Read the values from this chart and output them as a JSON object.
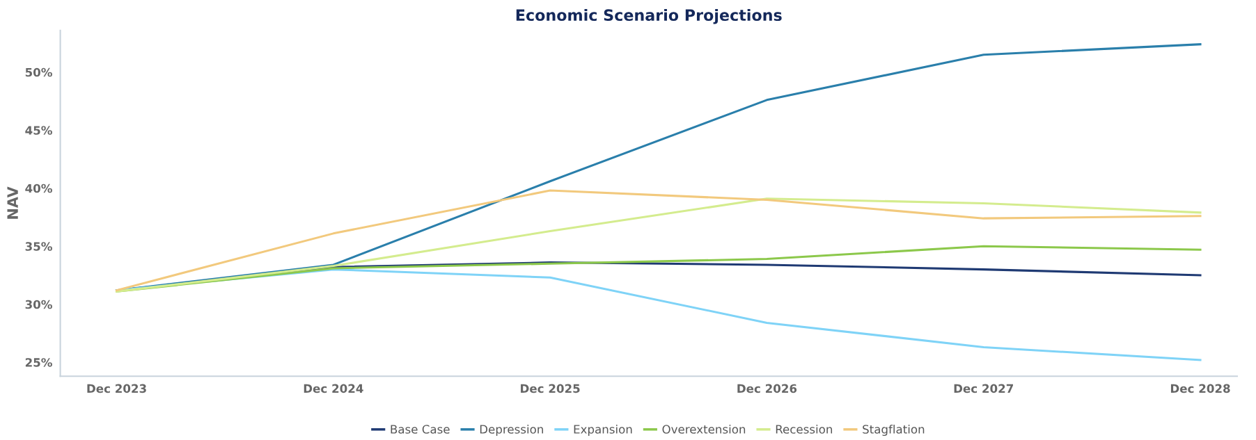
{
  "chart_data": {
    "type": "line",
    "title": "Economic Scenario Projections",
    "ylabel": "NAV",
    "categories": [
      "Dec 2023",
      "Dec 2024",
      "Dec 2025",
      "Dec 2026",
      "Dec 2027",
      "Dec 2028"
    ],
    "series": [
      {
        "name": "Base Case",
        "color": "#1f3a73",
        "values": [
          31.2,
          33.2,
          33.6,
          33.4,
          33.0,
          32.5
        ]
      },
      {
        "name": "Depression",
        "color": "#2a7fab",
        "values": [
          31.2,
          33.4,
          40.6,
          47.6,
          51.5,
          52.4
        ]
      },
      {
        "name": "Expansion",
        "color": "#7fd3f7",
        "values": [
          31.2,
          33.0,
          32.3,
          28.4,
          26.3,
          25.2
        ]
      },
      {
        "name": "Overextension",
        "color": "#8cc84b",
        "values": [
          31.1,
          33.1,
          33.5,
          33.9,
          35.0,
          34.7
        ]
      },
      {
        "name": "Recession",
        "color": "#d4ec8e",
        "values": [
          31.1,
          33.3,
          36.3,
          39.1,
          38.7,
          37.9
        ]
      },
      {
        "name": "Stagflation",
        "color": "#f2c97d",
        "values": [
          31.2,
          36.1,
          39.8,
          39.0,
          37.4,
          37.6
        ]
      }
    ],
    "ylim": [
      23.8,
      53.6
    ],
    "yticks": [
      {
        "value": 25,
        "label": "25%"
      },
      {
        "value": 30,
        "label": "30%"
      },
      {
        "value": 35,
        "label": "35%"
      },
      {
        "value": 40,
        "label": "40%"
      },
      {
        "value": 45,
        "label": "45%"
      },
      {
        "value": 50,
        "label": "50%"
      }
    ],
    "grid": false,
    "legend": "bottom",
    "marker": "none",
    "line_style": "solid"
  }
}
